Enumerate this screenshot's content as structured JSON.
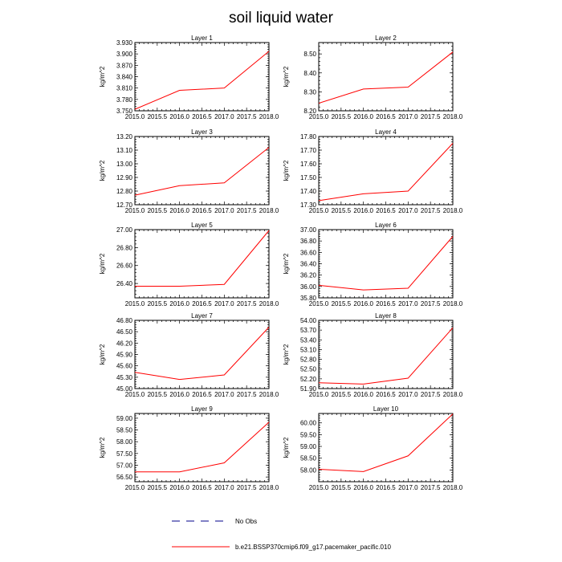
{
  "title": "soil liquid water",
  "ylabel": "kg/m^2",
  "legend": {
    "no_obs_label": "No Obs",
    "series_label": "b.e21.BSSP370cmip6.f09_g17.pacemaker_pacific.010",
    "no_obs_color": "#00008b",
    "series_color": "#ff0000"
  },
  "chart_data": [
    {
      "type": "line",
      "title": "Layer 1",
      "ylabel": "kg/m^2",
      "x": [
        2015,
        2016,
        2017,
        2018
      ],
      "values": [
        3.754,
        3.804,
        3.81,
        3.907
      ],
      "xlim": [
        2015,
        2018
      ],
      "ylim": [
        3.75,
        3.93
      ],
      "xticks": [
        2015,
        2015.5,
        2016,
        2016.5,
        2017,
        2017.5,
        2018
      ],
      "xtick_labels": [
        "2015.0",
        "2015.5",
        "2016.0",
        "2016.5",
        "2017.0",
        "2017.5",
        "2018.0"
      ],
      "yticks": [
        3.75,
        3.78,
        3.81,
        3.84,
        3.87,
        3.9,
        3.93
      ],
      "ytick_labels": [
        "3.750",
        "3.780",
        "3.810",
        "3.840",
        "3.870",
        "3.900",
        "3.930"
      ]
    },
    {
      "type": "line",
      "title": "Layer 2",
      "ylabel": "kg/m^2",
      "x": [
        2015,
        2016,
        2017,
        2018
      ],
      "values": [
        8.24,
        8.315,
        8.325,
        8.51
      ],
      "xlim": [
        2015,
        2018
      ],
      "ylim": [
        8.2,
        8.56
      ],
      "xticks": [
        2015,
        2015.5,
        2016,
        2016.5,
        2017,
        2017.5,
        2018
      ],
      "xtick_labels": [
        "2015.0",
        "2015.5",
        "2016.0",
        "2016.5",
        "2017.0",
        "2017.5",
        "2018.0"
      ],
      "yticks": [
        8.2,
        8.3,
        8.4,
        8.5
      ],
      "ytick_labels": [
        "8.20",
        "8.30",
        "8.40",
        "8.50"
      ]
    },
    {
      "type": "line",
      "title": "Layer 3",
      "ylabel": "kg/m^2",
      "x": [
        2015,
        2016,
        2017,
        2018
      ],
      "values": [
        12.77,
        12.84,
        12.86,
        13.12
      ],
      "xlim": [
        2015,
        2018
      ],
      "ylim": [
        12.7,
        13.2
      ],
      "xticks": [
        2015,
        2015.5,
        2016,
        2016.5,
        2017,
        2017.5,
        2018
      ],
      "xtick_labels": [
        "2015.0",
        "2015.5",
        "2016.0",
        "2016.5",
        "2017.0",
        "2017.5",
        "2018.0"
      ],
      "yticks": [
        12.7,
        12.8,
        12.9,
        13.0,
        13.1,
        13.2
      ],
      "ytick_labels": [
        "12.70",
        "12.80",
        "12.90",
        "13.00",
        "13.10",
        "13.20"
      ]
    },
    {
      "type": "line",
      "title": "Layer 4",
      "ylabel": "kg/m^2",
      "x": [
        2015,
        2016,
        2017,
        2018
      ],
      "values": [
        17.33,
        17.38,
        17.4,
        17.75
      ],
      "xlim": [
        2015,
        2018
      ],
      "ylim": [
        17.3,
        17.8
      ],
      "xticks": [
        2015,
        2015.5,
        2016,
        2016.5,
        2017,
        2017.5,
        2018
      ],
      "xtick_labels": [
        "2015.0",
        "2015.5",
        "2016.0",
        "2016.5",
        "2017.0",
        "2017.5",
        "2018.0"
      ],
      "yticks": [
        17.3,
        17.4,
        17.5,
        17.6,
        17.7,
        17.8
      ],
      "ytick_labels": [
        "17.30",
        "17.40",
        "17.50",
        "17.60",
        "17.70",
        "17.80"
      ]
    },
    {
      "type": "line",
      "title": "Layer 5",
      "ylabel": "kg/m^2",
      "x": [
        2015,
        2016,
        2017,
        2018
      ],
      "values": [
        26.37,
        26.37,
        26.39,
        26.99
      ],
      "xlim": [
        2015,
        2018
      ],
      "ylim": [
        26.24,
        27.0
      ],
      "xticks": [
        2015,
        2015.5,
        2016,
        2016.5,
        2017,
        2017.5,
        2018
      ],
      "xtick_labels": [
        "2015.0",
        "2015.5",
        "2016.0",
        "2016.5",
        "2017.0",
        "2017.5",
        "2018.0"
      ],
      "yticks": [
        26.4,
        26.6,
        26.8,
        27.0
      ],
      "ytick_labels": [
        "26.40",
        "26.60",
        "26.80",
        "27.00"
      ]
    },
    {
      "type": "line",
      "title": "Layer 6",
      "ylabel": "kg/m^2",
      "x": [
        2015,
        2016,
        2017,
        2018
      ],
      "values": [
        36.02,
        35.94,
        35.97,
        36.88
      ],
      "xlim": [
        2015,
        2018
      ],
      "ylim": [
        35.8,
        37.0
      ],
      "xticks": [
        2015,
        2015.5,
        2016,
        2016.5,
        2017,
        2017.5,
        2018
      ],
      "xtick_labels": [
        "2015.0",
        "2015.5",
        "2016.0",
        "2016.5",
        "2017.0",
        "2017.5",
        "2018.0"
      ],
      "yticks": [
        35.8,
        36.0,
        36.2,
        36.4,
        36.6,
        36.8,
        37.0
      ],
      "ytick_labels": [
        "35.80",
        "36.00",
        "36.20",
        "36.40",
        "36.60",
        "36.80",
        "37.00"
      ]
    },
    {
      "type": "line",
      "title": "Layer 7",
      "ylabel": "kg/m^2",
      "x": [
        2015,
        2016,
        2017,
        2018
      ],
      "values": [
        45.43,
        45.24,
        45.36,
        46.62
      ],
      "xlim": [
        2015,
        2018
      ],
      "ylim": [
        45.0,
        46.8
      ],
      "xticks": [
        2015,
        2015.5,
        2016,
        2016.5,
        2017,
        2017.5,
        2018
      ],
      "xtick_labels": [
        "2015.0",
        "2015.5",
        "2016.0",
        "2016.5",
        "2017.0",
        "2017.5",
        "2018.0"
      ],
      "yticks": [
        45.0,
        45.3,
        45.6,
        45.9,
        46.2,
        46.5,
        46.8
      ],
      "ytick_labels": [
        "45.00",
        "45.30",
        "45.60",
        "45.90",
        "46.20",
        "46.50",
        "46.80"
      ]
    },
    {
      "type": "line",
      "title": "Layer 8",
      "ylabel": "kg/m^2",
      "x": [
        2015,
        2016,
        2017,
        2018
      ],
      "values": [
        52.08,
        52.04,
        52.22,
        53.77
      ],
      "xlim": [
        2015,
        2018
      ],
      "ylim": [
        51.9,
        54.0
      ],
      "xticks": [
        2015,
        2015.5,
        2016,
        2016.5,
        2017,
        2017.5,
        2018
      ],
      "xtick_labels": [
        "2015.0",
        "2015.5",
        "2016.0",
        "2016.5",
        "2017.0",
        "2017.5",
        "2018.0"
      ],
      "yticks": [
        51.9,
        52.2,
        52.5,
        52.8,
        53.1,
        53.4,
        53.7,
        54.0
      ],
      "ytick_labels": [
        "51.90",
        "52.20",
        "52.50",
        "52.80",
        "53.10",
        "53.40",
        "53.70",
        "54.00"
      ]
    },
    {
      "type": "line",
      "title": "Layer 9",
      "ylabel": "kg/m^2",
      "x": [
        2015,
        2016,
        2017,
        2018
      ],
      "values": [
        56.72,
        56.72,
        57.1,
        58.83
      ],
      "xlim": [
        2015,
        2018
      ],
      "ylim": [
        56.3,
        59.2
      ],
      "xticks": [
        2015,
        2015.5,
        2016,
        2016.5,
        2017,
        2017.5,
        2018
      ],
      "xtick_labels": [
        "2015.0",
        "2015.5",
        "2016.0",
        "2016.5",
        "2017.0",
        "2017.5",
        "2018.0"
      ],
      "yticks": [
        56.5,
        57.0,
        57.5,
        58.0,
        58.5,
        59.0
      ],
      "ytick_labels": [
        "56.50",
        "57.00",
        "57.50",
        "58.00",
        "58.50",
        "59.00"
      ]
    },
    {
      "type": "line",
      "title": "Layer 10",
      "ylabel": "kg/m^2",
      "x": [
        2015,
        2016,
        2017,
        2018
      ],
      "values": [
        58.03,
        57.93,
        58.6,
        60.38
      ],
      "xlim": [
        2015,
        2018
      ],
      "ylim": [
        57.5,
        60.4
      ],
      "xticks": [
        2015,
        2015.5,
        2016,
        2016.5,
        2017,
        2017.5,
        2018
      ],
      "xtick_labels": [
        "2015.0",
        "2015.5",
        "2016.0",
        "2016.5",
        "2017.0",
        "2017.5",
        "2018.0"
      ],
      "yticks": [
        58.0,
        58.5,
        59.0,
        59.5,
        60.0
      ],
      "ytick_labels": [
        "58.00",
        "58.50",
        "59.00",
        "59.50",
        "60.00"
      ]
    }
  ]
}
